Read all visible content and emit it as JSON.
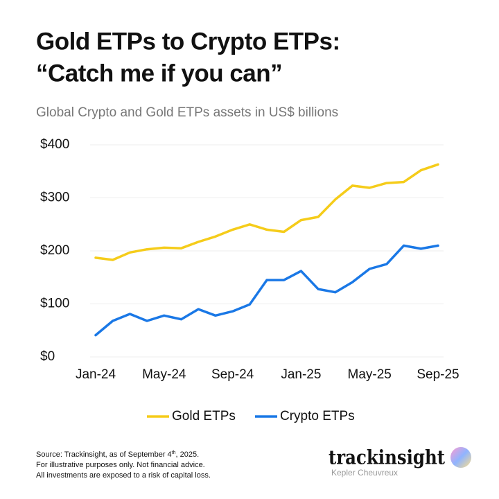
{
  "chart_data": {
    "type": "line",
    "title": [
      "Gold ETPs to Crypto ETPs:",
      "“Catch me if you can”"
    ],
    "subtitle": "Global Crypto and Gold ETPs assets in US$ billions",
    "categories": [
      "Jan-24",
      null,
      null,
      null,
      "May-24",
      null,
      null,
      null,
      "Sep-24",
      null,
      null,
      null,
      "Jan-25",
      null,
      null,
      null,
      "May-25",
      null,
      null,
      null,
      "Sep-25"
    ],
    "series": [
      {
        "name": "Gold ETPs",
        "color": "#f5cc1a",
        "values": [
          187,
          183,
          197,
          203,
          206,
          205,
          217,
          227,
          240,
          250,
          240,
          236,
          258,
          264,
          297,
          323,
          319,
          328,
          330,
          352,
          363
        ]
      },
      {
        "name": "Crypto ETPs",
        "color": "#1a78e6",
        "values": [
          41,
          68,
          81,
          68,
          78,
          71,
          90,
          78,
          86,
          99,
          145,
          145,
          162,
          128,
          122,
          141,
          166,
          175,
          210,
          204,
          210
        ]
      }
    ],
    "ylim": [
      0,
      400
    ],
    "yticks": [
      {
        "value": 0,
        "label": "$0"
      },
      {
        "value": 100,
        "label": "$100"
      },
      {
        "value": 200,
        "label": "$200"
      },
      {
        "value": 300,
        "label": "$300"
      },
      {
        "value": 400,
        "label": "$400"
      }
    ],
    "grid": true,
    "legend": "bottom",
    "footer": {
      "source": [
        "Source: Trackinsight, as of September 4",
        "th",
        ", 2025."
      ],
      "lines": [
        "For illustrative purposes only. Not financial advice.",
        "All investments are exposed to a risk of capital loss."
      ]
    },
    "logo": {
      "name": "trackinsight",
      "tagline": "Kepler Cheuvreux"
    }
  }
}
